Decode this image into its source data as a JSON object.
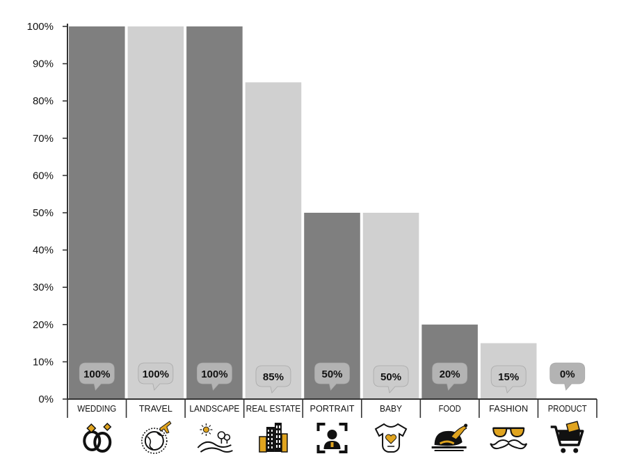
{
  "chart_data": {
    "type": "bar",
    "categories": [
      "WEDDING",
      "TRAVEL",
      "LANDSCAPE",
      "REAL ESTATE",
      "PORTRAIT",
      "BABY",
      "FOOD",
      "FASHION",
      "PRODUCT"
    ],
    "values": [
      100,
      100,
      100,
      85,
      50,
      50,
      20,
      15,
      0
    ],
    "data_labels": [
      "100%",
      "100%",
      "100%",
      "85%",
      "50%",
      "50%",
      "20%",
      "15%",
      "0%"
    ],
    "y_tick_labels": [
      "0%",
      "10%",
      "20%",
      "30%",
      "40%",
      "50%",
      "60%",
      "70%",
      "80%",
      "90%",
      "100%"
    ],
    "ylim": [
      0,
      100
    ],
    "title": "",
    "xlabel": "",
    "ylabel": "",
    "grid": false,
    "legend": "none",
    "icons": [
      "rings-icon",
      "globe-plane-icon",
      "landscape-icon",
      "buildings-icon",
      "portrait-frame-icon",
      "baby-onesie-icon",
      "roast-chicken-icon",
      "sunglasses-mustache-icon",
      "shopping-cart-icon"
    ]
  },
  "colors": {
    "bar_dark": "#7f7f7f",
    "bar_light": "#d0d0d0",
    "bubble_dark": "#b3b3b3",
    "bubble_light": "#cbcbcb",
    "accent": "#e0a41f",
    "icon": "#111111",
    "axis": "#333333"
  }
}
